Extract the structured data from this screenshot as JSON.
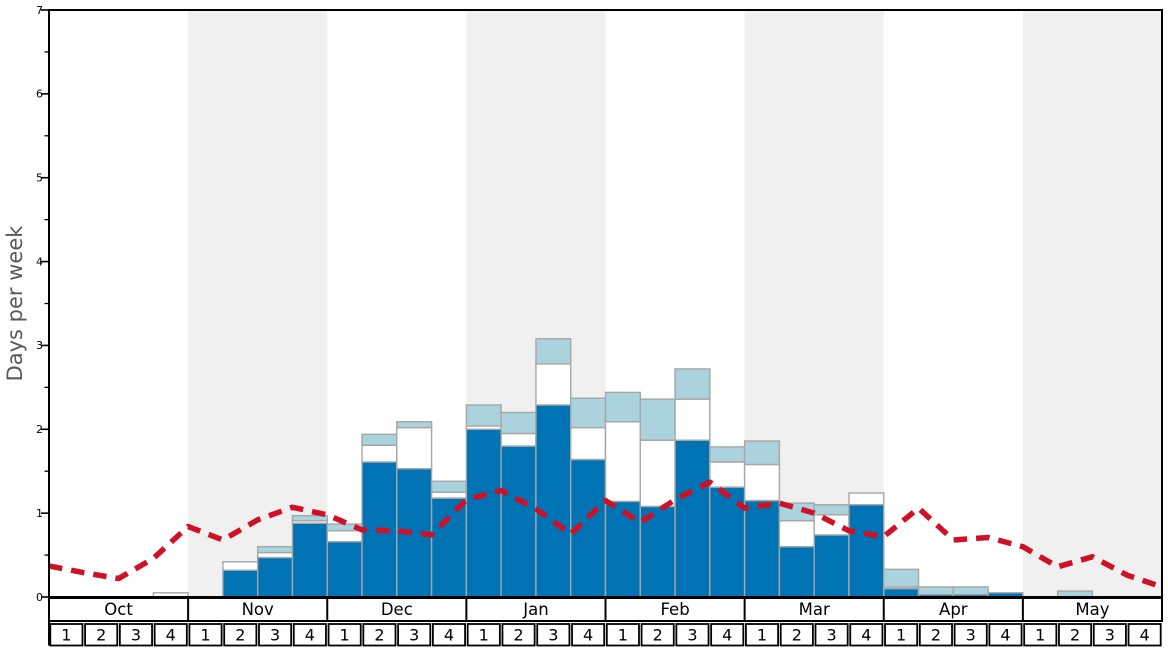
{
  "chart_data": {
    "type": "bar",
    "subtype": "stacked-bars-with-dashed-line",
    "title": "",
    "ylabel": "Days per week",
    "ylim": [
      0,
      7
    ],
    "ytick_labels": [
      "0",
      "1",
      "2",
      "3",
      "4",
      "5",
      "6",
      "7"
    ],
    "grid": false,
    "legend": "none",
    "months": [
      {
        "label": "Oct",
        "weeks": [
          "1",
          "2",
          "3",
          "4"
        ],
        "shaded": false
      },
      {
        "label": "Nov",
        "weeks": [
          "1",
          "2",
          "3",
          "4"
        ],
        "shaded": true
      },
      {
        "label": "Dec",
        "weeks": [
          "1",
          "2",
          "3",
          "4"
        ],
        "shaded": false
      },
      {
        "label": "Jan",
        "weeks": [
          "1",
          "2",
          "3",
          "4"
        ],
        "shaded": true
      },
      {
        "label": "Feb",
        "weeks": [
          "1",
          "2",
          "3",
          "4"
        ],
        "shaded": false
      },
      {
        "label": "Mar",
        "weeks": [
          "1",
          "2",
          "3",
          "4"
        ],
        "shaded": true
      },
      {
        "label": "Apr",
        "weeks": [
          "1",
          "2",
          "3",
          "4"
        ],
        "shaded": false
      },
      {
        "label": "May",
        "weeks": [
          "1",
          "2",
          "3",
          "4"
        ],
        "shaded": true
      }
    ],
    "stack_order": [
      "dark_blue",
      "white",
      "light_blue"
    ],
    "bars_cumulative_tops": [
      {
        "month": "Oct",
        "week": 1,
        "dark_blue": 0,
        "white": 0,
        "light_blue": 0
      },
      {
        "month": "Oct",
        "week": 2,
        "dark_blue": 0,
        "white": 0,
        "light_blue": 0
      },
      {
        "month": "Oct",
        "week": 3,
        "dark_blue": 0,
        "white": 0,
        "light_blue": 0
      },
      {
        "month": "Oct",
        "week": 4,
        "dark_blue": 0,
        "white": 0.05,
        "light_blue": 0.05
      },
      {
        "month": "Nov",
        "week": 1,
        "dark_blue": 0,
        "white": 0,
        "light_blue": 0
      },
      {
        "month": "Nov",
        "week": 2,
        "dark_blue": 0.32,
        "white": 0.42,
        "light_blue": 0.42
      },
      {
        "month": "Nov",
        "week": 3,
        "dark_blue": 0.47,
        "white": 0.53,
        "light_blue": 0.6
      },
      {
        "month": "Nov",
        "week": 4,
        "dark_blue": 0.88,
        "white": 0.91,
        "light_blue": 0.97
      },
      {
        "month": "Dec",
        "week": 1,
        "dark_blue": 0.66,
        "white": 0.79,
        "light_blue": 0.87
      },
      {
        "month": "Dec",
        "week": 2,
        "dark_blue": 1.61,
        "white": 1.81,
        "light_blue": 1.94
      },
      {
        "month": "Dec",
        "week": 3,
        "dark_blue": 1.53,
        "white": 2.02,
        "light_blue": 2.09
      },
      {
        "month": "Dec",
        "week": 4,
        "dark_blue": 1.18,
        "white": 1.25,
        "light_blue": 1.38
      },
      {
        "month": "Jan",
        "week": 1,
        "dark_blue": 2.0,
        "white": 2.04,
        "light_blue": 2.29
      },
      {
        "month": "Jan",
        "week": 2,
        "dark_blue": 1.8,
        "white": 1.95,
        "light_blue": 2.2
      },
      {
        "month": "Jan",
        "week": 3,
        "dark_blue": 2.29,
        "white": 2.78,
        "light_blue": 3.08
      },
      {
        "month": "Jan",
        "week": 4,
        "dark_blue": 1.64,
        "white": 2.02,
        "light_blue": 2.37
      },
      {
        "month": "Feb",
        "week": 1,
        "dark_blue": 1.14,
        "white": 2.09,
        "light_blue": 2.44
      },
      {
        "month": "Feb",
        "week": 2,
        "dark_blue": 1.08,
        "white": 1.87,
        "light_blue": 2.36
      },
      {
        "month": "Feb",
        "week": 3,
        "dark_blue": 1.87,
        "white": 2.36,
        "light_blue": 2.72
      },
      {
        "month": "Feb",
        "week": 4,
        "dark_blue": 1.31,
        "white": 1.61,
        "light_blue": 1.79
      },
      {
        "month": "Mar",
        "week": 1,
        "dark_blue": 1.15,
        "white": 1.58,
        "light_blue": 1.86
      },
      {
        "month": "Mar",
        "week": 2,
        "dark_blue": 0.6,
        "white": 0.91,
        "light_blue": 1.12
      },
      {
        "month": "Mar",
        "week": 3,
        "dark_blue": 0.74,
        "white": 0.98,
        "light_blue": 1.1
      },
      {
        "month": "Mar",
        "week": 4,
        "dark_blue": 1.1,
        "white": 1.24,
        "light_blue": 1.24
      },
      {
        "month": "Apr",
        "week": 1,
        "dark_blue": 0.1,
        "white": 0.12,
        "light_blue": 0.33
      },
      {
        "month": "Apr",
        "week": 2,
        "dark_blue": 0.03,
        "white": 0.03,
        "light_blue": 0.12
      },
      {
        "month": "Apr",
        "week": 3,
        "dark_blue": 0.03,
        "white": 0.03,
        "light_blue": 0.12
      },
      {
        "month": "Apr",
        "week": 4,
        "dark_blue": 0.05,
        "white": 0.05,
        "light_blue": 0.05
      },
      {
        "month": "May",
        "week": 1,
        "dark_blue": 0,
        "white": 0,
        "light_blue": 0
      },
      {
        "month": "May",
        "week": 2,
        "dark_blue": 0,
        "white": 0,
        "light_blue": 0.07
      },
      {
        "month": "May",
        "week": 3,
        "dark_blue": 0,
        "white": 0,
        "light_blue": 0
      },
      {
        "month": "May",
        "week": 4,
        "dark_blue": 0,
        "white": 0,
        "light_blue": 0
      }
    ],
    "red_dashed_line": {
      "x_mode": "week_boundaries",
      "values": [
        0.37,
        0.29,
        0.22,
        0.46,
        0.84,
        0.68,
        0.92,
        1.07,
        0.98,
        0.8,
        0.79,
        0.74,
        1.16,
        1.27,
        1.05,
        0.75,
        1.15,
        0.89,
        1.16,
        1.37,
        1.06,
        1.12,
        1.0,
        0.79,
        0.72,
        1.06,
        0.68,
        0.71,
        0.6,
        0.36,
        0.48,
        0.26,
        0.12
      ]
    }
  },
  "colors": {
    "dark_blue": "#0073B4",
    "light_blue": "#ABD3DE",
    "white_segment": "#FFFFFF",
    "bar_border": "#A6A6A6",
    "red_line": "#CE1126",
    "shaded_band": "#F0F0F0",
    "plot_background": "#FFFFFF",
    "axis": "#000000",
    "ylabel_text": "#58595B"
  }
}
